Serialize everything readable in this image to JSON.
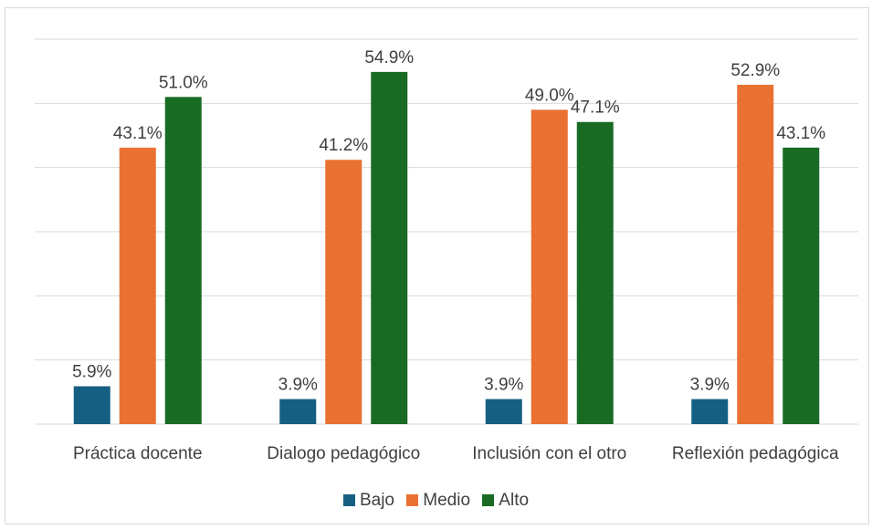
{
  "chart_data": {
    "type": "bar",
    "categories": [
      "Práctica docente",
      "Dialogo pedagógico",
      "Inclusión con el otro",
      "Reflexión pedagógica"
    ],
    "series": [
      {
        "name": "Bajo",
        "color": "#156082",
        "values": [
          5.9,
          3.9,
          3.9,
          3.9
        ],
        "labels": [
          "5.9%",
          "3.9%",
          "3.9%",
          "3.9%"
        ]
      },
      {
        "name": "Medio",
        "color": "#E97132",
        "values": [
          43.1,
          41.2,
          49.0,
          52.9
        ],
        "labels": [
          "43.1%",
          "41.2%",
          "49.0%",
          "52.9%"
        ]
      },
      {
        "name": "Alto",
        "color": "#196B24",
        "values": [
          51.0,
          54.9,
          47.1,
          43.1
        ],
        "labels": [
          "51.0%",
          "54.9%",
          "47.1%",
          "43.1%"
        ]
      }
    ],
    "title": "",
    "xlabel": "",
    "ylabel": "",
    "ylim": [
      0,
      60
    ],
    "grid": true,
    "legend_position": "bottom"
  }
}
